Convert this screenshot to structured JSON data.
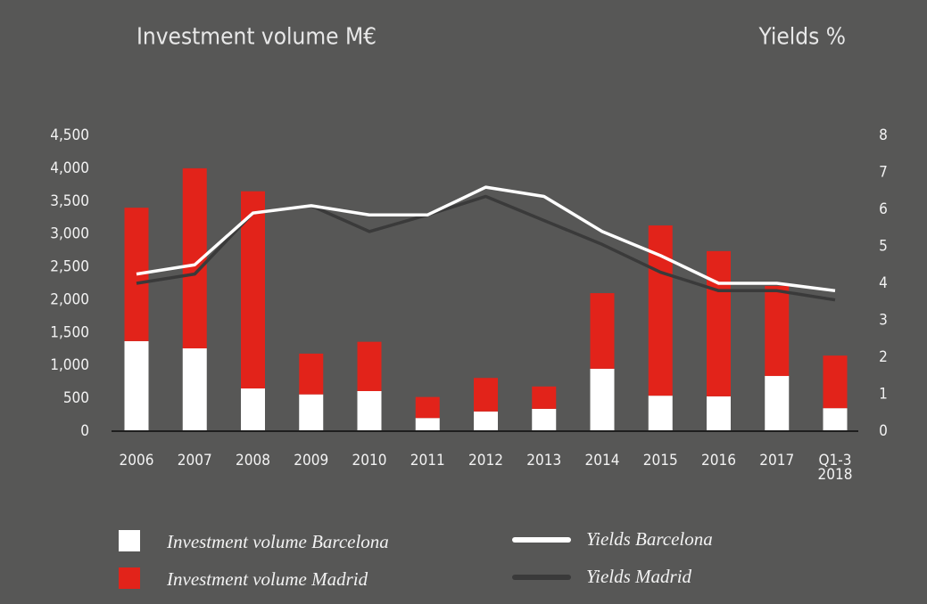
{
  "chart_data": {
    "type": "bar",
    "title": "Investment volume M€",
    "y2_title": "Yields %",
    "categories": [
      "2006",
      "2007",
      "2008",
      "2009",
      "2010",
      "2011",
      "2012",
      "2013",
      "2014",
      "2015",
      "2016",
      "2017",
      "Q1-3 2018"
    ],
    "stacked": true,
    "series": [
      {
        "name": "Investment volume Barcelona",
        "color": "#ffffff",
        "type": "bar",
        "values": [
          1370,
          1260,
          650,
          560,
          610,
          200,
          300,
          340,
          950,
          540,
          530,
          840,
          350
        ]
      },
      {
        "name": "Investment volume Madrid",
        "color": "#e2231a",
        "type": "bar",
        "values": [
          2030,
          2740,
          3000,
          620,
          750,
          320,
          510,
          340,
          1150,
          2590,
          2210,
          1370,
          800
        ]
      },
      {
        "name": "Yields Barcelona",
        "color": "#ffffff",
        "type": "line",
        "axis": "y2",
        "values": [
          4.25,
          4.5,
          5.9,
          6.1,
          5.85,
          5.85,
          6.6,
          6.35,
          5.4,
          4.75,
          4.0,
          4.0,
          3.8
        ]
      },
      {
        "name": "Yields Madrid",
        "color": "#3a3a3a",
        "type": "line",
        "axis": "y2",
        "values": [
          4.0,
          4.25,
          5.9,
          6.1,
          5.4,
          5.85,
          6.35,
          5.7,
          5.05,
          4.3,
          3.8,
          3.8,
          3.55
        ]
      }
    ],
    "ylim": [
      0,
      4500
    ],
    "yticks": [
      0,
      500,
      {
        "value": 1000,
        "label": "1,000"
      },
      {
        "value": 1500,
        "label": "1,500"
      },
      {
        "value": 2000,
        "label": "2,000"
      },
      {
        "value": 2500,
        "label": "2,500"
      },
      {
        "value": 3000,
        "label": "3,000"
      },
      {
        "value": 3500,
        "label": "3,500"
      },
      {
        "value": 4000,
        "label": "4,000"
      },
      {
        "value": 4500,
        "label": "4,500"
      }
    ],
    "y2lim": [
      0,
      8
    ],
    "y2ticks": [
      0,
      1,
      2,
      3,
      4,
      5,
      6,
      7,
      8
    ],
    "grid": false
  }
}
